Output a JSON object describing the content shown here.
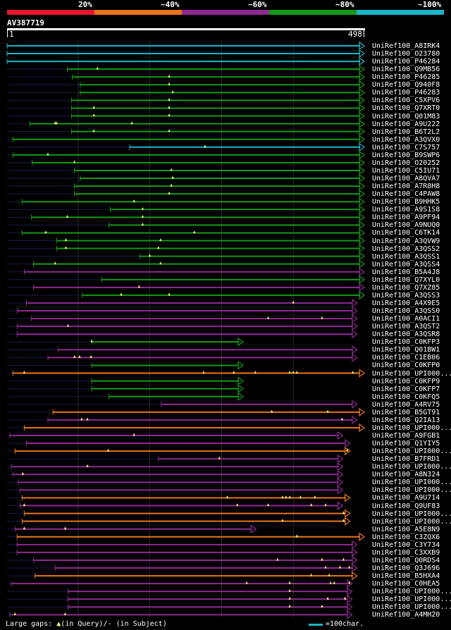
{
  "legend": {
    "items": [
      {
        "label": "20%",
        "color": "#e8162b"
      },
      {
        "label": "~40%",
        "color": "#e8761a"
      },
      {
        "label": "~60%",
        "color": "#8e2a92"
      },
      {
        "label": "~80%",
        "color": "#149a16"
      },
      {
        "label": "~100%",
        "color": "#1ab6c8"
      }
    ]
  },
  "query": {
    "id": "AV387719",
    "start": "1",
    "end": "498",
    "length": 498
  },
  "hits": [
    {
      "name": "UniRef100_A8IRK4",
      "c": "cyan",
      "s": 1,
      "e": 498,
      "q": []
    },
    {
      "name": "UniRef100_O23780",
      "c": "cyan",
      "s": 1,
      "e": 498,
      "q": []
    },
    {
      "name": "UniRef100_P46284",
      "c": "cyan",
      "s": 1,
      "e": 498,
      "q": []
    },
    {
      "name": "UniRef100_Q9MB56",
      "c": "green",
      "s": 85,
      "e": 498,
      "q": [
        127
      ]
    },
    {
      "name": "UniRef100_P46285",
      "c": "green",
      "s": 92,
      "e": 498,
      "q": [
        227
      ]
    },
    {
      "name": "UniRef100_Q940F8",
      "c": "green",
      "s": 103,
      "e": 498,
      "q": [
        227
      ]
    },
    {
      "name": "UniRef100_P46283",
      "c": "green",
      "s": 103,
      "e": 498,
      "q": [
        232
      ]
    },
    {
      "name": "UniRef100_C5XPV6",
      "c": "green",
      "s": 91,
      "e": 498,
      "q": [
        227
      ]
    },
    {
      "name": "UniRef100_Q7XRT0",
      "c": "green",
      "s": 91,
      "e": 498,
      "q": [
        122,
        227
      ]
    },
    {
      "name": "UniRef100_Q01M83",
      "c": "green",
      "s": 91,
      "e": 498,
      "q": [
        122,
        227
      ]
    },
    {
      "name": "UniRef100_A9U222",
      "c": "green",
      "s": 33,
      "e": 498,
      "q": [
        68,
        70,
        175
      ]
    },
    {
      "name": "UniRef100_B6T2L2",
      "c": "green",
      "s": 91,
      "e": 498,
      "q": [
        122,
        227
      ]
    },
    {
      "name": "UniRef100_A3QVX0",
      "c": "green",
      "s": 9,
      "e": 498,
      "q": []
    },
    {
      "name": "UniRef100_C7S757",
      "c": "cyan",
      "s": 172,
      "e": 498,
      "q": [
        277
      ]
    },
    {
      "name": "UniRef100_B9SWP6",
      "c": "green",
      "s": 9,
      "e": 498,
      "q": [
        58
      ]
    },
    {
      "name": "UniRef100_O20252",
      "c": "green",
      "s": 36,
      "e": 498,
      "q": [
        95
      ]
    },
    {
      "name": "UniRef100_C5IU71",
      "c": "green",
      "s": 95,
      "e": 498,
      "q": [
        230
      ]
    },
    {
      "name": "UniRef100_A8QVA7",
      "c": "green",
      "s": 103,
      "e": 498,
      "q": [
        232
      ]
    },
    {
      "name": "UniRef100_A7R8H8",
      "c": "green",
      "s": 95,
      "e": 498,
      "q": [
        230
      ]
    },
    {
      "name": "UniRef100_C4PAW8",
      "c": "green",
      "s": 95,
      "e": 498,
      "q": [
        227
      ]
    },
    {
      "name": "UniRef100_B9HHK5",
      "c": "green",
      "s": 22,
      "e": 498,
      "q": [
        178
      ]
    },
    {
      "name": "UniRef100_A9S1S8",
      "c": "green",
      "s": 145,
      "e": 498,
      "q": [
        190
      ]
    },
    {
      "name": "UniRef100_A9PF94",
      "c": "green",
      "s": 35,
      "e": 498,
      "q": [
        85,
        190
      ]
    },
    {
      "name": "UniRef100_A9NUQ0",
      "c": "green",
      "s": 143,
      "e": 498,
      "q": [
        190
      ]
    },
    {
      "name": "UniRef100_C6TK14",
      "c": "green",
      "s": 22,
      "e": 498,
      "q": [
        55,
        262
      ]
    },
    {
      "name": "UniRef100_A3QVW9",
      "c": "green",
      "s": 70,
      "e": 498,
      "q": [
        83,
        215
      ]
    },
    {
      "name": "UniRef100_A3QSS2",
      "c": "green",
      "s": 70,
      "e": 498,
      "q": [
        83,
        212
      ]
    },
    {
      "name": "UniRef100_A3QSS1",
      "c": "green",
      "s": 186,
      "e": 498,
      "q": [
        200
      ]
    },
    {
      "name": "UniRef100_A3QSS4",
      "c": "green",
      "s": 38,
      "e": 498,
      "q": [
        68,
        215
      ]
    },
    {
      "name": "UniRef100_B5A4J8",
      "c": "purple",
      "s": 25,
      "e": 498,
      "q": []
    },
    {
      "name": "UniRef100_Q7XYL0",
      "c": "green",
      "s": 133,
      "e": 498,
      "q": []
    },
    {
      "name": "UniRef100_Q7XZ85",
      "c": "purple",
      "s": 38,
      "e": 498,
      "q": [
        185
      ]
    },
    {
      "name": "UniRef100_A3QSS3",
      "c": "green",
      "s": 106,
      "e": 498,
      "q": [
        160,
        227
      ]
    },
    {
      "name": "UniRef100_A4X9E5",
      "c": "purple",
      "s": 28,
      "e": 488,
      "q": [
        400
      ]
    },
    {
      "name": "UniRef100_A3QSS0",
      "c": "purple",
      "s": 15,
      "e": 488,
      "q": []
    },
    {
      "name": "UniRef100_A0ACI1",
      "c": "purple",
      "s": 35,
      "e": 488,
      "q": [
        365,
        440
      ]
    },
    {
      "name": "UniRef100_A3QST2",
      "c": "purple",
      "s": 15,
      "e": 488,
      "q": [
        86
      ]
    },
    {
      "name": "UniRef100_A3QSR8",
      "c": "purple",
      "s": 15,
      "e": 488,
      "q": []
    },
    {
      "name": "UniRef100_C0KFP3",
      "c": "green",
      "s": 119,
      "e": 329,
      "q": [
        119
      ]
    },
    {
      "name": "UniRef100_Q01BW1",
      "c": "purple",
      "s": 72,
      "e": 488,
      "q": []
    },
    {
      "name": "UniRef100_C1EB06",
      "c": "purple",
      "s": 58,
      "e": 488,
      "q": [
        95,
        102,
        118
      ]
    },
    {
      "name": "UniRef100_C0KFP0",
      "c": "green",
      "s": 119,
      "e": 329,
      "q": []
    },
    {
      "name": "UniRef100_UPI000...",
      "c": "orange",
      "s": 9,
      "e": 498,
      "q": [
        25,
        275,
        317,
        347,
        395,
        400,
        405,
        483
      ]
    },
    {
      "name": "UniRef100_C0KFP9",
      "c": "green",
      "s": 119,
      "e": 329,
      "q": []
    },
    {
      "name": "UniRef100_C0KFP7",
      "c": "green",
      "s": 119,
      "e": 329,
      "q": []
    },
    {
      "name": "UniRef100_C0KFQ5",
      "c": "green",
      "s": 143,
      "e": 329,
      "q": []
    },
    {
      "name": "UniRef100_A4RV75",
      "c": "purple",
      "s": 216,
      "e": 488,
      "q": []
    },
    {
      "name": "UniRef100_B5GT91",
      "c": "orange",
      "s": 65,
      "e": 498,
      "q": [
        370,
        448
      ]
    },
    {
      "name": "UniRef100_Q2IA13",
      "c": "purple",
      "s": 58,
      "e": 488,
      "q": [
        105,
        113,
        468
      ]
    },
    {
      "name": "UniRef100_UPI000...",
      "c": "orange",
      "s": 25,
      "e": 498,
      "q": []
    },
    {
      "name": "UniRef100_A9FGB1",
      "c": "purple",
      "s": 5,
      "e": 468,
      "q": [
        178
      ]
    },
    {
      "name": "UniRef100_Q1YIY5",
      "c": "purple",
      "s": 28,
      "e": 478,
      "q": []
    },
    {
      "name": "UniRef100_UPI000...",
      "c": "orange",
      "s": 12,
      "e": 478,
      "q": [
        142,
        475
      ]
    },
    {
      "name": "UniRef100_B7FRD1",
      "c": "purple",
      "s": 212,
      "e": 468,
      "q": [
        297
      ]
    },
    {
      "name": "UniRef100_UPI000...",
      "c": "purple",
      "s": 7,
      "e": 468,
      "q": [
        113
      ]
    },
    {
      "name": "UniRef100_A8N324",
      "c": "purple",
      "s": 9,
      "e": 468,
      "q": [
        23
      ]
    },
    {
      "name": "UniRef100_UPI000...",
      "c": "purple",
      "s": 17,
      "e": 468,
      "q": []
    },
    {
      "name": "UniRef100_UPI000...",
      "c": "purple",
      "s": 19,
      "e": 468,
      "q": []
    },
    {
      "name": "UniRef100_A9U714",
      "c": "orange",
      "s": 22,
      "e": 478,
      "q": [
        308,
        385,
        390,
        395,
        410,
        430
      ]
    },
    {
      "name": "UniRef100_Q9UF83",
      "c": "purple",
      "s": 19,
      "e": 468,
      "q": [
        25,
        322,
        365,
        425,
        445
      ]
    },
    {
      "name": "UniRef100_UPI000...",
      "c": "orange",
      "s": 25,
      "e": 478,
      "q": [
        470
      ]
    },
    {
      "name": "UniRef100_UPI000...",
      "c": "orange",
      "s": 22,
      "e": 478,
      "q": [
        385,
        470
      ]
    },
    {
      "name": "UniRef100_A5E8N9",
      "c": "purple",
      "s": 12,
      "e": 347,
      "q": [
        25,
        82
      ]
    },
    {
      "name": "UniRef100_C3ZQX6",
      "c": "orange",
      "s": 15,
      "e": 498,
      "q": [
        405
      ]
    },
    {
      "name": "UniRef100_C3Y734",
      "c": "purple",
      "s": 15,
      "e": 488,
      "q": []
    },
    {
      "name": "UniRef100_C3XXB9",
      "c": "purple",
      "s": 15,
      "e": 488,
      "q": []
    },
    {
      "name": "UniRef100_Q0RDS4",
      "c": "purple",
      "s": 38,
      "e": 488,
      "q": [
        378,
        440,
        470
      ]
    },
    {
      "name": "UniRef100_Q3J696",
      "c": "purple",
      "s": 68,
      "e": 488,
      "q": [
        445,
        465,
        478
      ]
    },
    {
      "name": "UniRef100_B5HXA4",
      "c": "orange",
      "s": 40,
      "e": 488,
      "q": [
        425,
        450
      ]
    },
    {
      "name": "UniRef100_C0HEA5",
      "c": "purple",
      "s": 7,
      "e": 481,
      "q": [
        335,
        395,
        452,
        457,
        478
      ]
    },
    {
      "name": "UniRef100_UPI000...",
      "c": "purple",
      "s": 86,
      "e": 481,
      "q": [
        395
      ]
    },
    {
      "name": "UniRef100_UPI000...",
      "c": "purple",
      "s": 86,
      "e": 481,
      "q": [
        395,
        448,
        472
      ]
    },
    {
      "name": "UniRef100_UPI000...",
      "c": "purple",
      "s": 86,
      "e": 481,
      "q": [
        395,
        440
      ]
    },
    {
      "name": "UniRef100_A4MH20",
      "c": "purple",
      "s": 5,
      "e": 481,
      "q": [
        12,
        82
      ]
    }
  ],
  "footer": {
    "large_gaps": "Large gaps:",
    "in_query": "(in Query)/",
    "in_subject": "(in Subject)",
    "scale_label": "=100char."
  },
  "colors": {
    "cyan": "#1ab6c8",
    "green": "#149a16",
    "purple": "#8e2a92",
    "orange": "#e8761a",
    "grid": "#2d2d2d",
    "triangle": "#ffff80"
  }
}
